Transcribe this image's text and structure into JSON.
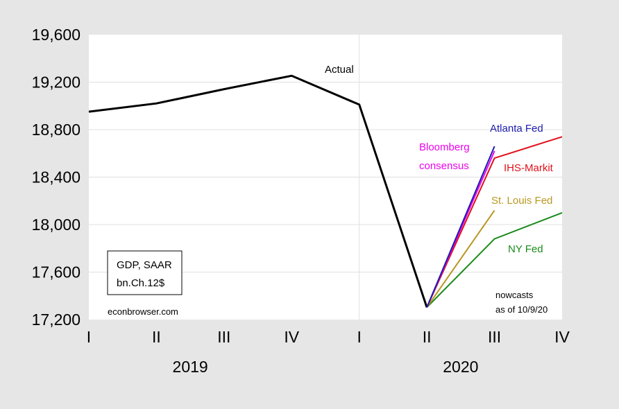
{
  "chart_data": {
    "type": "line",
    "categories": [
      "I",
      "II",
      "III",
      "IV",
      "I",
      "II",
      "III",
      "IV"
    ],
    "years": [
      {
        "label": "2019",
        "span": [
          0,
          3
        ]
      },
      {
        "label": "2020",
        "span": [
          4,
          7
        ]
      }
    ],
    "ylim": [
      17200,
      19600
    ],
    "yticks": [
      17200,
      17600,
      18000,
      18400,
      18800,
      19200,
      19600
    ],
    "ytick_labels": [
      "17,200",
      "17,600",
      "18,000",
      "18,400",
      "18,800",
      "19,200",
      "19,600"
    ],
    "series": [
      {
        "name": "Actual",
        "color": "#000000",
        "width": 3,
        "points": [
          [
            0,
            18951
          ],
          [
            1,
            19021
          ],
          [
            2,
            19141
          ],
          [
            3,
            19254
          ],
          [
            4,
            19011
          ],
          [
            5,
            17303
          ]
        ]
      },
      {
        "name": "NY Fed",
        "color": "#1a8a1a",
        "width": 2,
        "points": [
          [
            5,
            17303
          ],
          [
            6,
            17880
          ],
          [
            7,
            18100
          ]
        ]
      },
      {
        "name": "St. Louis Fed",
        "color": "#b8961f",
        "width": 2,
        "points": [
          [
            5,
            17303
          ],
          [
            6,
            18120
          ]
        ]
      },
      {
        "name": "IHS-Markit",
        "color": "#e0101a",
        "width": 2,
        "points": [
          [
            5,
            17303
          ],
          [
            6,
            18560
          ],
          [
            7,
            18740
          ]
        ]
      },
      {
        "name": "Bloomberg consensus",
        "color": "#ee00ee",
        "width": 2,
        "points": [
          [
            5,
            17303
          ],
          [
            6,
            18620
          ]
        ]
      },
      {
        "name": "Atlanta Fed",
        "color": "#1c1cb0",
        "width": 2,
        "points": [
          [
            5,
            17303
          ],
          [
            6,
            18660
          ]
        ]
      }
    ],
    "grid": true
  },
  "labels": {
    "actual": "Actual",
    "atlanta": "Atlanta Fed",
    "bloomberg_1": "Bloomberg",
    "bloomberg_2": "consensus",
    "ihs": "IHS-Markit",
    "stlouis": "St. Louis Fed",
    "nyfed": "NY Fed",
    "nowcasts_1": "nowcasts",
    "nowcasts_2": "as of 10/9/20",
    "box_1": "GDP, SAAR",
    "box_2": "bn.Ch.12$",
    "source": "econbrowser.com"
  },
  "colors": {
    "background": "#e6e6e6",
    "plot_area": "#ffffff",
    "grid": "#e0e0e0"
  }
}
